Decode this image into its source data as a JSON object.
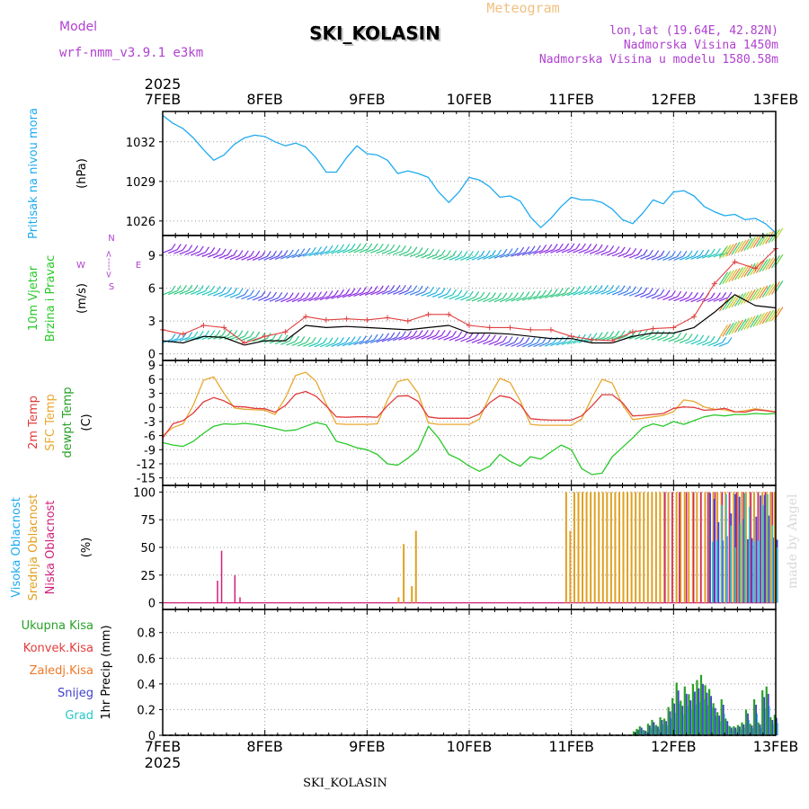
{
  "header": {
    "model_label": "Model",
    "model_value": "wrf-nmm_v3.9.1  e3km",
    "station": "SKI_KOLASIN",
    "meteogram": "Meteogram",
    "lonlat": "lon,lat (19.64E, 42.82N)",
    "altitude": "Nadmorska Visina 1450m",
    "model_altitude": "Nadmorska Visina u modelu 1580.58m",
    "year": "2025",
    "footer_station": "SKI_KOLASIN",
    "credit": "made by Angel"
  },
  "colors": {
    "pressure": "#1eaaf0",
    "black": "#000000",
    "gust": "#e04040",
    "t2m": "#e03c3c",
    "sfc": "#e8a830",
    "dewpt": "#28c828",
    "cloud_high": "#4040e0",
    "cloud_mid": "#e0a020",
    "cloud_low": "#d0207a",
    "precip_total": "#28a028",
    "precip_conv": "#e03c3c",
    "precip_freez": "#f07828",
    "precip_snow": "#4040d0",
    "precip_grad": "#28c8c8",
    "legend_violet": "#b040d0"
  },
  "chart_data": [
    {
      "type": "line",
      "panel": "pressure",
      "ylabel_main": "Pritisak na nivou mora",
      "ylabel_unit": "(hPa)",
      "yticks": [
        1026,
        1029,
        1032
      ],
      "ylim": [
        1024.9,
        1034.3
      ],
      "x_days": [
        0,
        0.1,
        0.2,
        0.3,
        0.4,
        0.5,
        0.6,
        0.7,
        0.8,
        0.9,
        1.0,
        1.1,
        1.2,
        1.3,
        1.4,
        1.5,
        1.6,
        1.7,
        1.8,
        1.9,
        2.0,
        2.1,
        2.2,
        2.3,
        2.4,
        2.5,
        2.6,
        2.7,
        2.8,
        2.9,
        3.0,
        3.1,
        3.2,
        3.3,
        3.4,
        3.5,
        3.6,
        3.7,
        3.8,
        3.9,
        4.0,
        4.1,
        4.2,
        4.3,
        4.4,
        4.5,
        4.6,
        4.7,
        4.8,
        4.9,
        5.0,
        5.1,
        5.2,
        5.3,
        5.4,
        5.5,
        5.6,
        5.7,
        5.8,
        5.9,
        6.0
      ],
      "values": [
        1034.0,
        1033.4,
        1033.0,
        1032.3,
        1031.4,
        1030.6,
        1031.0,
        1031.8,
        1032.3,
        1032.5,
        1032.4,
        1032.0,
        1031.7,
        1031.9,
        1031.6,
        1030.8,
        1029.7,
        1029.7,
        1030.8,
        1031.7,
        1031.1,
        1031.0,
        1030.6,
        1029.6,
        1029.8,
        1029.6,
        1029.3,
        1028.2,
        1027.4,
        1028.2,
        1029.3,
        1029.1,
        1028.6,
        1027.8,
        1027.9,
        1027.5,
        1026.3,
        1025.5,
        1026.2,
        1027.1,
        1027.8,
        1027.6,
        1027.6,
        1027.4,
        1026.9,
        1026.1,
        1025.8,
        1026.6,
        1027.6,
        1027.3,
        1028.2,
        1028.3,
        1027.9,
        1027.1,
        1026.7,
        1026.4,
        1026.5,
        1026.1,
        1026.2,
        1025.8,
        1025.1
      ]
    },
    {
      "type": "line",
      "panel": "wind",
      "ylabel_main": "10m Vjetar",
      "ylabel_sub": "Brzina i Pravac",
      "ylabel_unit": "(m/s)",
      "compass": "N",
      "compass_arrow": "<---->",
      "compass_w": "W",
      "compass_e": "E",
      "compass_s": "S",
      "yticks": [
        0,
        3,
        6,
        9
      ],
      "ylim": [
        -0.6,
        10.8
      ],
      "x_days": [
        0,
        0.2,
        0.4,
        0.6,
        0.8,
        1.0,
        1.2,
        1.4,
        1.6,
        1.8,
        2.0,
        2.2,
        2.4,
        2.6,
        2.8,
        3.0,
        3.2,
        3.4,
        3.6,
        3.8,
        4.0,
        4.2,
        4.4,
        4.6,
        4.8,
        5.0,
        5.2,
        5.4,
        5.6,
        5.8,
        6.0
      ],
      "wind_speed": [
        1.2,
        1.0,
        1.6,
        1.5,
        0.8,
        1.2,
        1.2,
        2.6,
        2.4,
        2.5,
        2.4,
        2.3,
        2.2,
        2.4,
        2.6,
        1.9,
        1.9,
        1.8,
        1.6,
        1.4,
        1.4,
        1.0,
        1.0,
        1.6,
        1.9,
        1.9,
        2.4,
        3.8,
        5.4,
        4.4,
        4.2
      ],
      "gust": [
        2.2,
        1.8,
        2.6,
        2.4,
        1.0,
        1.6,
        2.0,
        3.4,
        3.1,
        3.2,
        3.1,
        3.3,
        3.0,
        3.6,
        3.6,
        2.6,
        2.4,
        2.4,
        2.2,
        2.2,
        1.6,
        1.3,
        1.2,
        2.0,
        2.3,
        2.4,
        3.4,
        6.4,
        8.4,
        7.8,
        9.6
      ],
      "barb_rows": [
        1.0,
        5.1,
        8.9
      ]
    },
    {
      "type": "line",
      "panel": "temperature",
      "ylabel_main": "2m Temp",
      "ylabel_sub": "SFC Temp",
      "ylabel_sub2": "dewpt Temp",
      "ylabel_unit": "(C)",
      "yticks": [
        -15,
        -12,
        -9,
        -6,
        -3,
        0,
        3,
        6,
        9
      ],
      "ylim": [
        -16.6,
        10.0
      ],
      "x_days": [
        0,
        0.1,
        0.2,
        0.3,
        0.4,
        0.5,
        0.6,
        0.7,
        0.8,
        0.9,
        1.0,
        1.1,
        1.2,
        1.3,
        1.4,
        1.5,
        1.6,
        1.7,
        1.8,
        1.9,
        2.0,
        2.1,
        2.2,
        2.3,
        2.4,
        2.5,
        2.6,
        2.7,
        2.8,
        2.9,
        3.0,
        3.1,
        3.2,
        3.3,
        3.4,
        3.5,
        3.6,
        3.7,
        3.8,
        3.9,
        4.0,
        4.1,
        4.2,
        4.3,
        4.4,
        4.5,
        4.6,
        4.7,
        4.8,
        4.9,
        5.0,
        5.1,
        5.2,
        5.3,
        5.4,
        5.5,
        5.6,
        5.7,
        5.8,
        5.9,
        6.0
      ],
      "t2m": [
        -6.5,
        -3.5,
        -2.8,
        -1.2,
        1.2,
        2.1,
        1.4,
        0.2,
        0.1,
        -0.2,
        -0.3,
        -1.0,
        0.4,
        2.8,
        3.4,
        2.4,
        0.3,
        -2.0,
        -2.1,
        -2.0,
        -2.0,
        -2.1,
        0.4,
        2.4,
        2.5,
        1.3,
        -2.0,
        -2.3,
        -2.3,
        -2.3,
        -2.3,
        -1.4,
        1.0,
        2.5,
        2.1,
        0.6,
        -2.4,
        -2.6,
        -2.7,
        -2.7,
        -2.7,
        -1.8,
        0.3,
        2.7,
        2.7,
        1.0,
        -1.8,
        -1.7,
        -1.5,
        -1.3,
        -0.2,
        0.1,
        0.0,
        -0.6,
        -0.5,
        -0.2,
        -0.9,
        -1.0,
        -0.5,
        -0.7,
        -1.0
      ],
      "sfc": [
        -6.0,
        -4.3,
        -3.5,
        0.5,
        5.8,
        6.5,
        3.0,
        -0.1,
        -0.4,
        -0.5,
        -0.6,
        -1.5,
        2.0,
        6.8,
        7.5,
        5.6,
        0.7,
        -3.5,
        -3.6,
        -3.6,
        -3.6,
        -3.5,
        1.6,
        5.5,
        6.0,
        3.0,
        -3.3,
        -3.6,
        -3.6,
        -3.6,
        -3.6,
        -2.5,
        2.4,
        6.2,
        5.3,
        1.4,
        -3.6,
        -3.8,
        -3.8,
        -3.8,
        -3.8,
        -2.5,
        2.0,
        6.0,
        5.2,
        0.6,
        -2.6,
        -2.3,
        -2.0,
        -1.7,
        -0.9,
        1.6,
        1.3,
        0.1,
        -0.4,
        -0.5,
        -1.0,
        -0.7,
        -0.3,
        -0.6,
        -0.9
      ],
      "dewpt": [
        -7.5,
        -8.0,
        -8.3,
        -7.2,
        -5.5,
        -4.0,
        -3.5,
        -3.6,
        -3.4,
        -3.6,
        -4.0,
        -4.5,
        -5.0,
        -4.8,
        -4.0,
        -3.2,
        -3.7,
        -7.2,
        -7.8,
        -8.6,
        -9.0,
        -10.0,
        -12.0,
        -12.3,
        -10.8,
        -9.0,
        -4.0,
        -6.5,
        -10.0,
        -11.0,
        -12.5,
        -13.6,
        -12.5,
        -10.0,
        -11.5,
        -12.5,
        -10.5,
        -11.0,
        -9.5,
        -8.0,
        -9.0,
        -13.0,
        -14.3,
        -14.0,
        -10.5,
        -8.5,
        -6.5,
        -4.3,
        -3.5,
        -4.0,
        -3.0,
        -3.6,
        -2.8,
        -2.0,
        -1.6,
        -1.8,
        -1.5,
        -1.5,
        -1.3,
        -1.4,
        -1.3
      ]
    },
    {
      "type": "bar",
      "panel": "clouds",
      "ylabel_main": "Visoka Oblacnost",
      "ylabel_sub": "Srednja Oblacnost",
      "ylabel_sub2": "Niska Oblacnost",
      "ylabel_unit": "(%)",
      "yticks": [
        0,
        25,
        50,
        75,
        100
      ],
      "ylim": [
        -6,
        106
      ],
      "mid_day_start": 3.94,
      "mid_day_step": 0.04,
      "high_start": 5.33,
      "high_step": 0.041,
      "low_start": 4.9,
      "low_step": 0.07,
      "low_values_days": [
        0.53,
        0.57,
        0.7,
        0.75
      ],
      "low_values": [
        20,
        47,
        25,
        5
      ],
      "mid_isolated_days": [
        2.3,
        2.35,
        2.43,
        2.47
      ],
      "mid_isolated": [
        5,
        53,
        15,
        65
      ]
    },
    {
      "type": "bar",
      "panel": "precip",
      "ylabel_main": "Ukupna Kisa",
      "ylabel_sub": "Konvek.Kisa",
      "ylabel_sub2": "Zaledj.Kisa",
      "ylabel_sub3": "Snijeg",
      "ylabel_sub4": "Grad",
      "ylabel_unit": "1hr Precip (mm)",
      "yticks": [
        0,
        0.2,
        0.4,
        0.6,
        0.8
      ],
      "ylim": [
        0,
        0.98
      ],
      "x_days": [
        4.6,
        4.63,
        4.66,
        4.7,
        4.74,
        4.78,
        4.82,
        4.86,
        4.9,
        4.94,
        4.98,
        5.02,
        5.06,
        5.1,
        5.14,
        5.18,
        5.22,
        5.26,
        5.3,
        5.34,
        5.38,
        5.42,
        5.46,
        5.5,
        5.54,
        5.58,
        5.62,
        5.66,
        5.7,
        5.74,
        5.78,
        5.82,
        5.86,
        5.9,
        5.94,
        5.98
      ],
      "values": [
        0.03,
        0.05,
        0.07,
        0.04,
        0.09,
        0.12,
        0.08,
        0.14,
        0.13,
        0.22,
        0.29,
        0.41,
        0.27,
        0.38,
        0.32,
        0.4,
        0.43,
        0.47,
        0.39,
        0.36,
        0.25,
        0.18,
        0.28,
        0.13,
        0.07,
        0.07,
        0.08,
        0.1,
        0.2,
        0.09,
        0.28,
        0.1,
        0.35,
        0.38,
        0.14,
        0.16
      ]
    }
  ],
  "x_axis": {
    "ticks": [
      "7FEB",
      "8FEB",
      "9FEB",
      "10FEB",
      "11FEB",
      "12FEB",
      "13FEB"
    ]
  }
}
